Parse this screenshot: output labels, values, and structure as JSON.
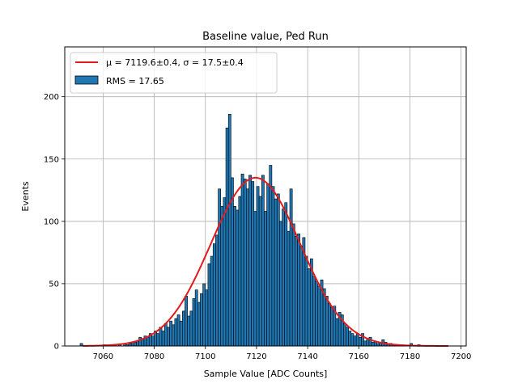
{
  "chart_data": {
    "type": "bar",
    "title": "Baseline value, Ped Run",
    "xlabel": "Sample Value [ADC Counts]",
    "ylabel": "Events",
    "xlim": [
      7045,
      7202
    ],
    "ylim": [
      0,
      240
    ],
    "xticks": [
      7060,
      7080,
      7100,
      7120,
      7140,
      7160,
      7180,
      7200
    ],
    "yticks": [
      0,
      50,
      100,
      150,
      200
    ],
    "grid": true,
    "legend_position": "top-left",
    "bin_width": 1,
    "series": [
      {
        "name": "RMS = 17.65",
        "color": "#1f77b4",
        "bins": [
          [
            7051,
            2
          ],
          [
            7060,
            1
          ],
          [
            7064,
            1
          ],
          [
            7066,
            1
          ],
          [
            7068,
            2
          ],
          [
            7069,
            1
          ],
          [
            7070,
            2
          ],
          [
            7071,
            2
          ],
          [
            7072,
            3
          ],
          [
            7073,
            4
          ],
          [
            7074,
            7
          ],
          [
            7075,
            6
          ],
          [
            7076,
            8
          ],
          [
            7077,
            7
          ],
          [
            7078,
            10
          ],
          [
            7079,
            8
          ],
          [
            7080,
            12
          ],
          [
            7081,
            10
          ],
          [
            7082,
            15
          ],
          [
            7083,
            12
          ],
          [
            7084,
            18
          ],
          [
            7085,
            15
          ],
          [
            7086,
            20
          ],
          [
            7087,
            17
          ],
          [
            7088,
            22
          ],
          [
            7089,
            25
          ],
          [
            7090,
            20
          ],
          [
            7091,
            28
          ],
          [
            7092,
            40
          ],
          [
            7093,
            24
          ],
          [
            7094,
            28
          ],
          [
            7095,
            38
          ],
          [
            7096,
            45
          ],
          [
            7097,
            35
          ],
          [
            7098,
            42
          ],
          [
            7099,
            50
          ],
          [
            7100,
            45
          ],
          [
            7101,
            66
          ],
          [
            7102,
            72
          ],
          [
            7103,
            82
          ],
          [
            7104,
            89
          ],
          [
            7105,
            126
          ],
          [
            7106,
            112
          ],
          [
            7107,
            119
          ],
          [
            7108,
            175
          ],
          [
            7109,
            186
          ],
          [
            7110,
            135
          ],
          [
            7111,
            112
          ],
          [
            7112,
            109
          ],
          [
            7113,
            120
          ],
          [
            7114,
            138
          ],
          [
            7115,
            134
          ],
          [
            7116,
            126
          ],
          [
            7117,
            137
          ],
          [
            7118,
            132
          ],
          [
            7119,
            108
          ],
          [
            7120,
            128
          ],
          [
            7121,
            120
          ],
          [
            7122,
            137
          ],
          [
            7123,
            108
          ],
          [
            7124,
            130
          ],
          [
            7125,
            145
          ],
          [
            7126,
            128
          ],
          [
            7127,
            118
          ],
          [
            7128,
            122
          ],
          [
            7129,
            100
          ],
          [
            7130,
            110
          ],
          [
            7131,
            115
          ],
          [
            7132,
            92
          ],
          [
            7133,
            126
          ],
          [
            7134,
            98
          ],
          [
            7135,
            88
          ],
          [
            7136,
            90
          ],
          [
            7137,
            80
          ],
          [
            7138,
            87
          ],
          [
            7139,
            72
          ],
          [
            7140,
            62
          ],
          [
            7141,
            70
          ],
          [
            7142,
            56
          ],
          [
            7143,
            52
          ],
          [
            7144,
            48
          ],
          [
            7145,
            53
          ],
          [
            7146,
            46
          ],
          [
            7147,
            40
          ],
          [
            7148,
            34
          ],
          [
            7149,
            31
          ],
          [
            7150,
            32
          ],
          [
            7151,
            22
          ],
          [
            7152,
            27
          ],
          [
            7153,
            25
          ],
          [
            7154,
            18
          ],
          [
            7155,
            15
          ],
          [
            7156,
            12
          ],
          [
            7157,
            10
          ],
          [
            7158,
            8
          ],
          [
            7159,
            10
          ],
          [
            7160,
            7
          ],
          [
            7161,
            10
          ],
          [
            7162,
            4
          ],
          [
            7163,
            6
          ],
          [
            7164,
            7
          ],
          [
            7165,
            3
          ],
          [
            7166,
            4
          ],
          [
            7167,
            2
          ],
          [
            7168,
            3
          ],
          [
            7169,
            5
          ],
          [
            7170,
            3
          ],
          [
            7171,
            2
          ],
          [
            7172,
            2
          ],
          [
            7173,
            1
          ],
          [
            7174,
            1
          ],
          [
            7176,
            1
          ],
          [
            7180,
            2
          ],
          [
            7183,
            1
          ]
        ]
      }
    ],
    "fit": {
      "name": "μ = 7119.6±0.4, σ = 17.5±0.4",
      "color": "#e41a1c",
      "type": "gaussian",
      "mu": 7119.6,
      "sigma": 17.5,
      "amplitude": 135,
      "x_range": [
        7052,
        7195
      ]
    }
  }
}
